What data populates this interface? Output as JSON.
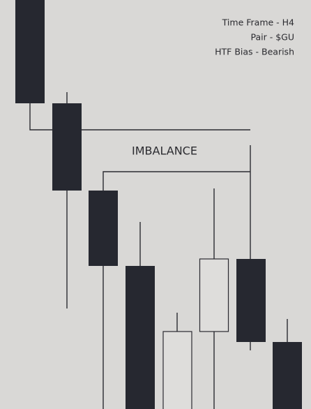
{
  "info": {
    "lines": [
      "Time Frame - H4",
      "Pair - $GU",
      "HTF Bias - Bearish"
    ]
  },
  "label": "IMBALANCE"
}
